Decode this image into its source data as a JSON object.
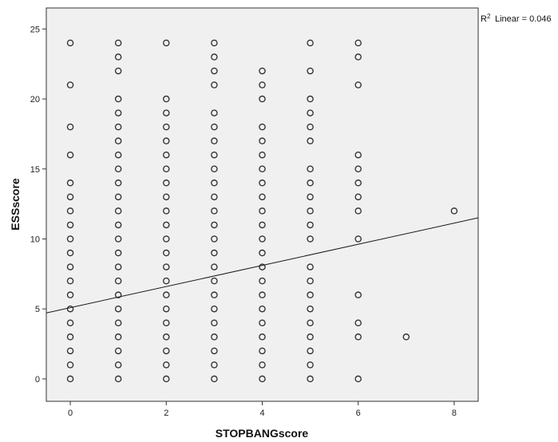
{
  "chart_data": {
    "type": "scatter",
    "xlabel": "STOPBANGscore",
    "ylabel": "ESSscore",
    "xlim": [
      -0.5,
      8.5
    ],
    "ylim": [
      -1.6,
      26.5
    ],
    "xticks": [
      "0",
      "2",
      "4",
      "6",
      "8"
    ],
    "yticks": [
      "0",
      "5",
      "10",
      "15",
      "20",
      "25"
    ],
    "grid": false,
    "background_color": "#f0f0f0",
    "marker_color": "#2a2a2a",
    "line_color": "#1a1a1a",
    "r2_label": "Linear = 0.046",
    "fit_line": {
      "intercept": 5.09,
      "slope": 0.755
    },
    "points": [
      [
        0,
        24
      ],
      [
        0,
        21
      ],
      [
        0,
        18
      ],
      [
        0,
        16
      ],
      [
        0,
        14
      ],
      [
        0,
        13
      ],
      [
        0,
        12
      ],
      [
        0,
        11
      ],
      [
        0,
        10
      ],
      [
        0,
        9
      ],
      [
        0,
        8
      ],
      [
        0,
        7
      ],
      [
        0,
        6
      ],
      [
        0,
        5
      ],
      [
        0,
        4
      ],
      [
        0,
        3
      ],
      [
        0,
        2
      ],
      [
        0,
        1
      ],
      [
        0,
        0
      ],
      [
        1,
        24
      ],
      [
        1,
        23
      ],
      [
        1,
        22
      ],
      [
        1,
        20
      ],
      [
        1,
        19
      ],
      [
        1,
        18
      ],
      [
        1,
        17
      ],
      [
        1,
        16
      ],
      [
        1,
        15
      ],
      [
        1,
        14
      ],
      [
        1,
        13
      ],
      [
        1,
        12
      ],
      [
        1,
        11
      ],
      [
        1,
        10
      ],
      [
        1,
        9
      ],
      [
        1,
        8
      ],
      [
        1,
        7
      ],
      [
        1,
        6
      ],
      [
        1,
        5
      ],
      [
        1,
        4
      ],
      [
        1,
        3
      ],
      [
        1,
        2
      ],
      [
        1,
        1
      ],
      [
        1,
        0
      ],
      [
        2,
        24
      ],
      [
        2,
        20
      ],
      [
        2,
        19
      ],
      [
        2,
        18
      ],
      [
        2,
        17
      ],
      [
        2,
        16
      ],
      [
        2,
        15
      ],
      [
        2,
        14
      ],
      [
        2,
        13
      ],
      [
        2,
        12
      ],
      [
        2,
        11
      ],
      [
        2,
        10
      ],
      [
        2,
        9
      ],
      [
        2,
        8
      ],
      [
        2,
        7
      ],
      [
        2,
        6
      ],
      [
        2,
        5
      ],
      [
        2,
        4
      ],
      [
        2,
        3
      ],
      [
        2,
        2
      ],
      [
        2,
        1
      ],
      [
        2,
        0
      ],
      [
        3,
        24
      ],
      [
        3,
        23
      ],
      [
        3,
        22
      ],
      [
        3,
        21
      ],
      [
        3,
        19
      ],
      [
        3,
        18
      ],
      [
        3,
        17
      ],
      [
        3,
        16
      ],
      [
        3,
        15
      ],
      [
        3,
        14
      ],
      [
        3,
        13
      ],
      [
        3,
        12
      ],
      [
        3,
        11
      ],
      [
        3,
        10
      ],
      [
        3,
        9
      ],
      [
        3,
        8
      ],
      [
        3,
        7
      ],
      [
        3,
        6
      ],
      [
        3,
        5
      ],
      [
        3,
        4
      ],
      [
        3,
        3
      ],
      [
        3,
        2
      ],
      [
        3,
        1
      ],
      [
        3,
        0
      ],
      [
        4,
        22
      ],
      [
        4,
        21
      ],
      [
        4,
        20
      ],
      [
        4,
        18
      ],
      [
        4,
        17
      ],
      [
        4,
        16
      ],
      [
        4,
        15
      ],
      [
        4,
        14
      ],
      [
        4,
        13
      ],
      [
        4,
        12
      ],
      [
        4,
        11
      ],
      [
        4,
        10
      ],
      [
        4,
        9
      ],
      [
        4,
        8
      ],
      [
        4,
        7
      ],
      [
        4,
        6
      ],
      [
        4,
        5
      ],
      [
        4,
        4
      ],
      [
        4,
        3
      ],
      [
        4,
        2
      ],
      [
        4,
        1
      ],
      [
        4,
        0
      ],
      [
        5,
        24
      ],
      [
        5,
        22
      ],
      [
        5,
        20
      ],
      [
        5,
        19
      ],
      [
        5,
        18
      ],
      [
        5,
        17
      ],
      [
        5,
        15
      ],
      [
        5,
        14
      ],
      [
        5,
        13
      ],
      [
        5,
        12
      ],
      [
        5,
        11
      ],
      [
        5,
        10
      ],
      [
        5,
        8
      ],
      [
        5,
        7
      ],
      [
        5,
        6
      ],
      [
        5,
        5
      ],
      [
        5,
        4
      ],
      [
        5,
        3
      ],
      [
        5,
        2
      ],
      [
        5,
        1
      ],
      [
        5,
        0
      ],
      [
        6,
        24
      ],
      [
        6,
        23
      ],
      [
        6,
        21
      ],
      [
        6,
        16
      ],
      [
        6,
        15
      ],
      [
        6,
        14
      ],
      [
        6,
        13
      ],
      [
        6,
        12
      ],
      [
        6,
        10
      ],
      [
        6,
        6
      ],
      [
        6,
        4
      ],
      [
        6,
        3
      ],
      [
        6,
        0
      ],
      [
        7,
        3
      ],
      [
        8,
        12
      ]
    ]
  }
}
